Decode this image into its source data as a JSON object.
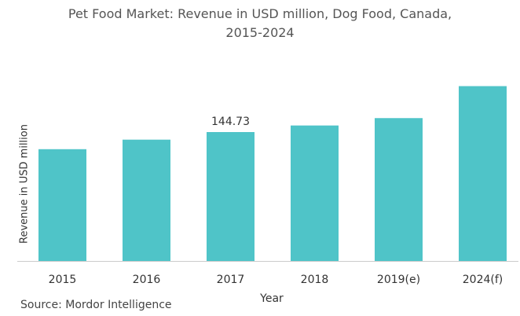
{
  "chart_data": {
    "type": "bar",
    "title_line1": "Pet Food Market: Revenue in USD million, Dog Food, Canada,",
    "title_line2": "2015-2024",
    "categories": [
      "2015",
      "2016",
      "2017",
      "2018",
      "2019(e)",
      "2024(f)"
    ],
    "values": [
      125.5,
      136.2,
      144.73,
      152.1,
      160.4,
      196.3
    ],
    "data_labels": [
      "",
      "",
      "144.73",
      "",
      "",
      ""
    ],
    "xlabel": "Year",
    "ylabel": "Revenue in USD million",
    "ylim": [
      0,
      210
    ],
    "grid": false,
    "bar_color": "#4fc4c8"
  },
  "source": "Source: Mordor Intelligence"
}
